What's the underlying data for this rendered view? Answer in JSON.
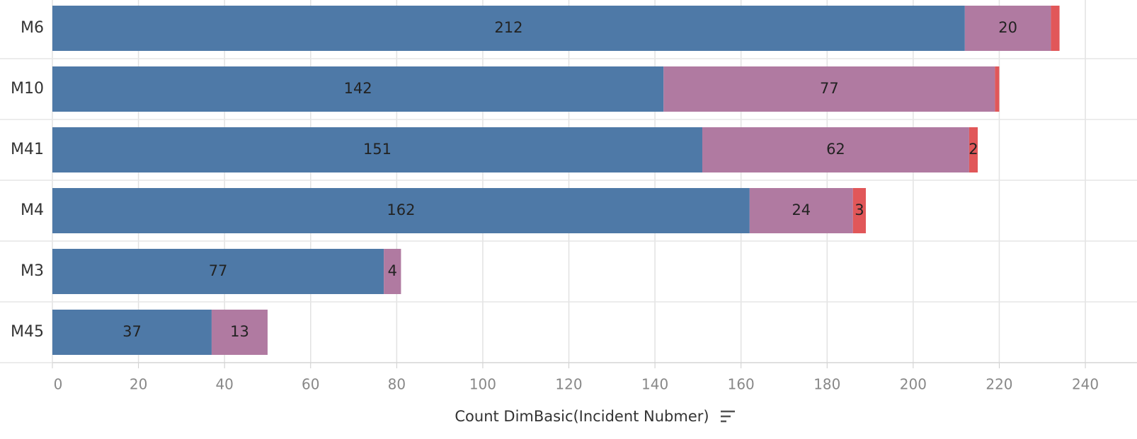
{
  "chart_data": {
    "type": "stacked_bar_horizontal",
    "x_label": "Count DimBasic(Incident Nubmer)",
    "categories": [
      "M6",
      "M10",
      "M41",
      "M4",
      "M3",
      "M45"
    ],
    "series": [
      {
        "color": "#4e79a7",
        "values": [
          212,
          142,
          151,
          162,
          77,
          37
        ]
      },
      {
        "color": "#b07aa1",
        "values": [
          20,
          77,
          62,
          24,
          4,
          13
        ]
      },
      {
        "color": "#e15759",
        "values": [
          2,
          1,
          2,
          3,
          null,
          null
        ],
        "value_labels": [
          null,
          null,
          "2",
          "3",
          null,
          null
        ]
      }
    ],
    "xlim": [
      0,
      252
    ],
    "xticks": [
      0,
      20,
      40,
      60,
      80,
      100,
      120,
      140,
      160,
      180,
      200,
      220,
      240
    ],
    "grid": true
  }
}
